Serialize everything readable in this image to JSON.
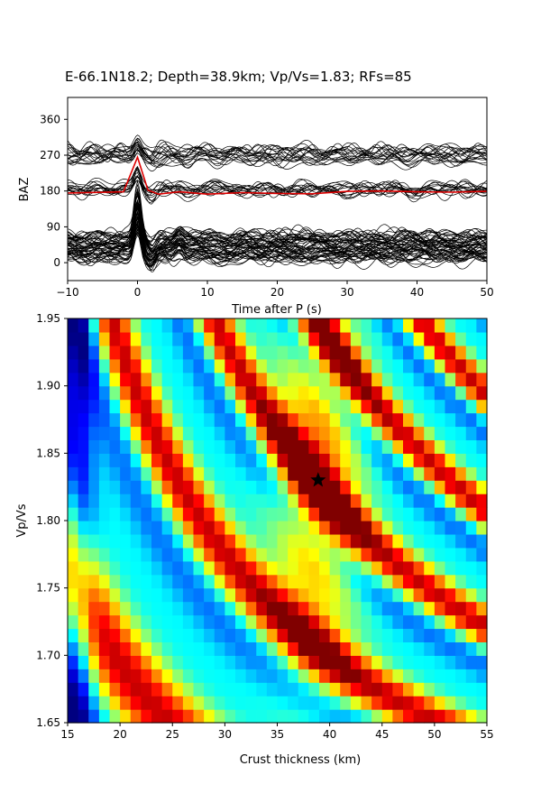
{
  "figure_title": "E-66.1N18.2; Depth=38.9km; Vp/Vs=1.83; RFs=85",
  "chart_data": [
    {
      "type": "line",
      "title": "",
      "xlabel": "Time after P (s)",
      "ylabel": "BAZ",
      "xlim": [
        -10,
        50
      ],
      "ylim": [
        -45,
        415
      ],
      "x_ticks": [
        -10,
        0,
        10,
        20,
        30,
        40,
        50
      ],
      "y_ticks": [
        0,
        90,
        180,
        270,
        360
      ],
      "grid": false,
      "trace_groups": [
        {
          "baz_center": 270,
          "count": 18,
          "color": "#000000",
          "peak_amplitude": 25
        },
        {
          "baz_center": 180,
          "count": 14,
          "color": "#000000",
          "peak_amplitude": 45
        },
        {
          "baz_center": 40,
          "count": 53,
          "color": "#000000",
          "peak_amplitude": 100
        }
      ],
      "series": [
        {
          "color": "#dd0000",
          "x": [
            -10,
            -2,
            0,
            1.5,
            3,
            6,
            10,
            15,
            20,
            25,
            30,
            35,
            40,
            45,
            50
          ],
          "values": [
            175,
            178,
            265,
            182,
            172,
            178,
            172,
            176,
            174,
            173,
            179,
            180,
            178,
            177,
            179
          ]
        }
      ]
    },
    {
      "type": "heatmap",
      "title": "",
      "xlabel": "Crust thickness (km)",
      "ylabel": "Vp/Vs",
      "xlim": [
        15,
        55
      ],
      "ylim": [
        1.65,
        1.95
      ],
      "x_ticks": [
        15,
        20,
        25,
        30,
        35,
        40,
        45,
        50,
        55
      ],
      "y_ticks": [
        1.65,
        1.7,
        1.75,
        1.8,
        1.85,
        1.9,
        1.95
      ],
      "colormap": "jet",
      "grid_size": [
        40,
        30
      ],
      "best_fit": {
        "thickness": 38.9,
        "vpvs": 1.83,
        "marker": "star"
      }
    }
  ]
}
